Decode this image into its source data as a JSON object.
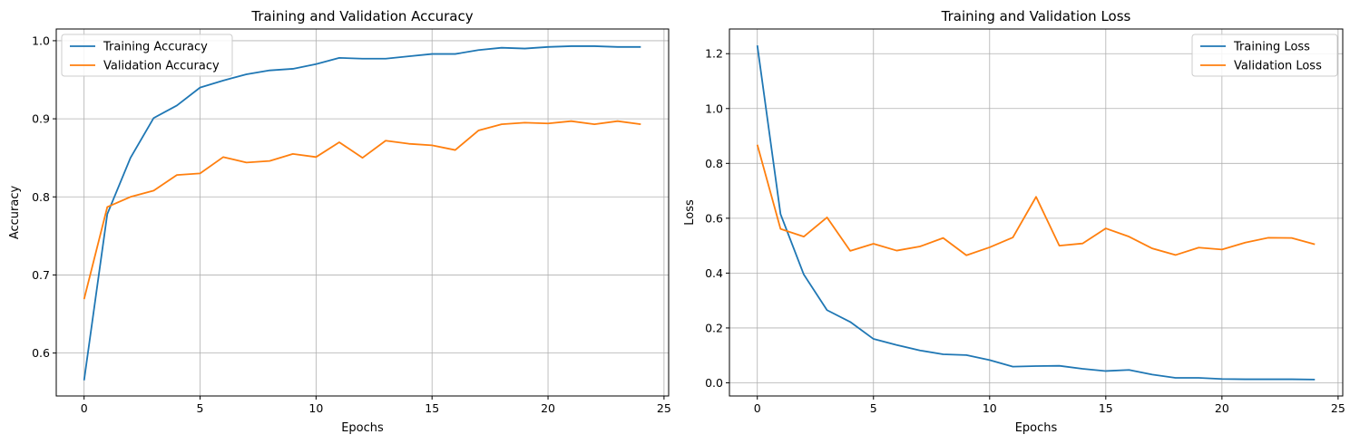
{
  "chart_data": [
    {
      "type": "line",
      "title": "Training and Validation Accuracy",
      "xlabel": "Epochs",
      "ylabel": "Accuracy",
      "xlim": [
        -1.2,
        25.2
      ],
      "ylim": [
        0.545,
        1.015
      ],
      "xticks": [
        0,
        5,
        10,
        15,
        20,
        25
      ],
      "yticks": [
        0.6,
        0.7,
        0.8,
        0.9,
        1.0
      ],
      "ytick_format": 1,
      "grid": true,
      "legend_placement": "upper left",
      "x": [
        0,
        1,
        2,
        3,
        4,
        5,
        6,
        7,
        8,
        9,
        10,
        11,
        12,
        13,
        14,
        15,
        16,
        17,
        18,
        19,
        20,
        21,
        22,
        23,
        24
      ],
      "series": [
        {
          "name": "Training Accuracy",
          "color": "#1f77b4",
          "values": [
            0.565,
            0.778,
            0.85,
            0.901,
            0.917,
            0.94,
            0.949,
            0.957,
            0.962,
            0.964,
            0.97,
            0.978,
            0.977,
            0.977,
            0.98,
            0.983,
            0.983,
            0.988,
            0.991,
            0.99,
            0.992,
            0.993,
            0.993,
            0.992,
            0.992
          ]
        },
        {
          "name": "Validation Accuracy",
          "color": "#ff7f0e",
          "values": [
            0.669,
            0.787,
            0.8,
            0.808,
            0.828,
            0.83,
            0.851,
            0.844,
            0.846,
            0.855,
            0.851,
            0.87,
            0.85,
            0.872,
            0.868,
            0.866,
            0.86,
            0.885,
            0.893,
            0.895,
            0.894,
            0.897,
            0.893,
            0.897,
            0.893
          ]
        }
      ]
    },
    {
      "type": "line",
      "title": "Training and Validation Loss",
      "xlabel": "Epochs",
      "ylabel": "Loss",
      "xlim": [
        -1.2,
        25.2
      ],
      "ylim": [
        -0.048,
        1.29
      ],
      "xticks": [
        0,
        5,
        10,
        15,
        20,
        25
      ],
      "yticks": [
        0.0,
        0.2,
        0.4,
        0.6,
        0.8,
        1.0,
        1.2
      ],
      "ytick_format": 1,
      "grid": true,
      "legend_placement": "upper right",
      "x": [
        0,
        1,
        2,
        3,
        4,
        5,
        6,
        7,
        8,
        9,
        10,
        11,
        12,
        13,
        14,
        15,
        16,
        17,
        18,
        19,
        20,
        21,
        22,
        23,
        24
      ],
      "series": [
        {
          "name": "Training Loss",
          "color": "#1f77b4",
          "values": [
            1.23,
            0.615,
            0.395,
            0.265,
            0.222,
            0.16,
            0.138,
            0.118,
            0.104,
            0.101,
            0.083,
            0.059,
            0.061,
            0.062,
            0.051,
            0.043,
            0.047,
            0.03,
            0.018,
            0.018,
            0.014,
            0.013,
            0.013,
            0.013,
            0.012
          ]
        },
        {
          "name": "Validation Loss",
          "color": "#ff7f0e",
          "values": [
            0.868,
            0.561,
            0.533,
            0.603,
            0.481,
            0.507,
            0.482,
            0.497,
            0.528,
            0.465,
            0.494,
            0.53,
            0.678,
            0.5,
            0.508,
            0.563,
            0.533,
            0.49,
            0.466,
            0.493,
            0.486,
            0.511,
            0.529,
            0.528,
            0.505
          ]
        }
      ]
    }
  ]
}
